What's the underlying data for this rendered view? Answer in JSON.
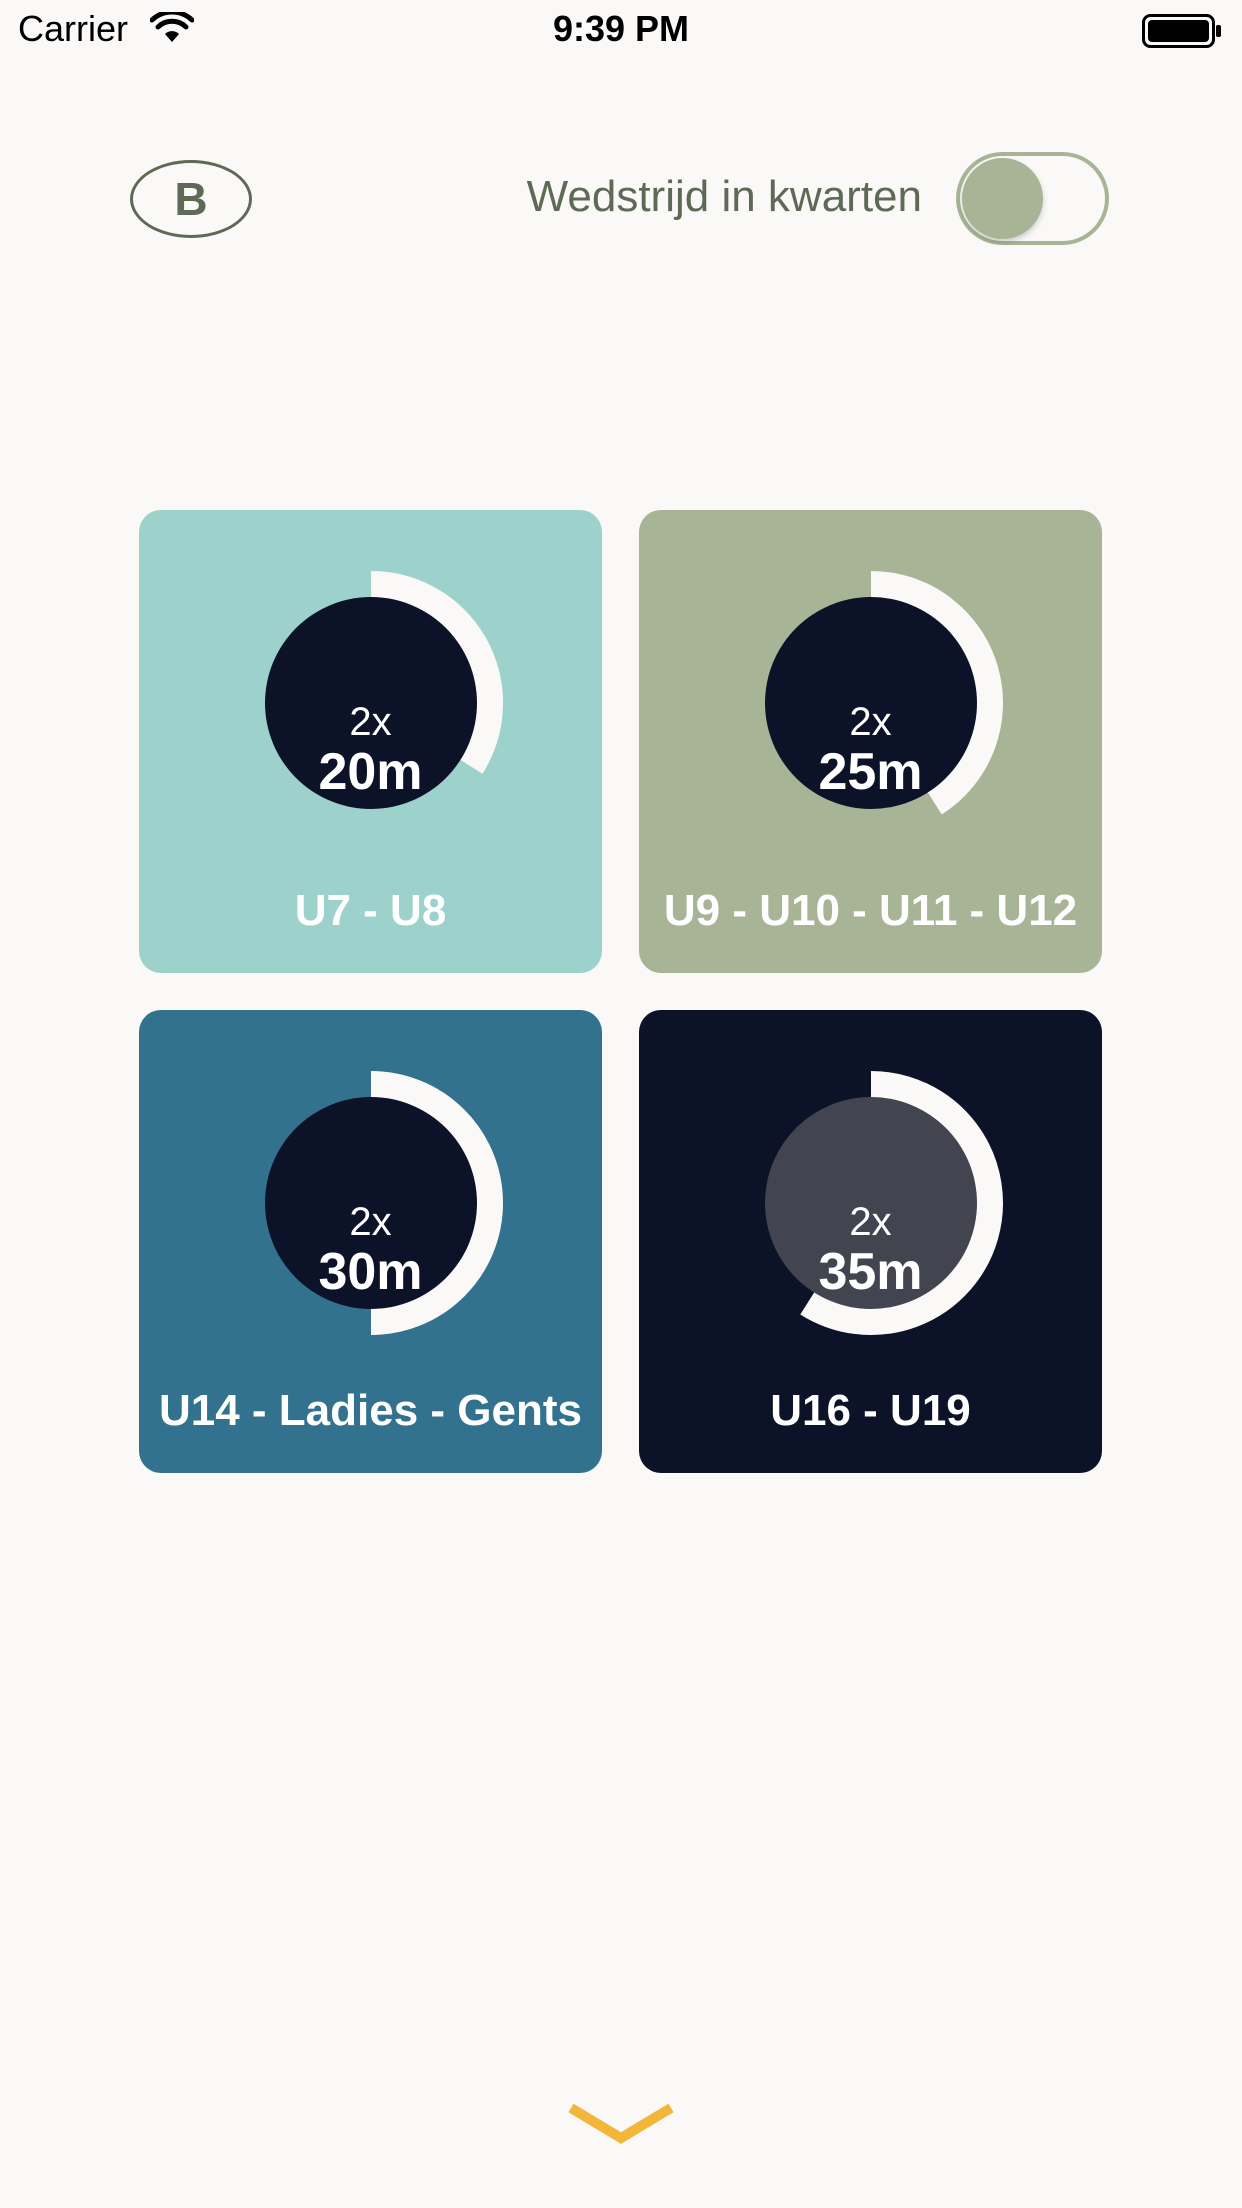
{
  "status_bar": {
    "carrier": "Carrier",
    "time": "9:39 PM"
  },
  "header": {
    "badge_letter": "B",
    "toggle_label": "Wedstrijd in kwarten",
    "toggle_on": true
  },
  "tiles": [
    {
      "count": "2x",
      "duration": "20m",
      "label": "U7 - U8",
      "background": "#9dd2cc",
      "progress": 0.34
    },
    {
      "count": "2x",
      "duration": "25m",
      "label": "U9 - U10 - U11 - U12",
      "background": "#a7b596",
      "progress": 0.41
    },
    {
      "count": "2x",
      "duration": "30m",
      "label": "U14 - Ladies - Gents",
      "background": "#32728e",
      "progress": 0.5
    },
    {
      "count": "2x",
      "duration": "35m",
      "label": "U16 - U19",
      "background": "#0c1228",
      "progress": 0.59,
      "inner_color": "#42444f"
    }
  ],
  "colors": {
    "accent_olive": "#5e6a55",
    "toggle_green": "#a7b596",
    "dark_navy": "#0c1228",
    "chevron_yellow": "#f2b63a"
  },
  "icons": {
    "wifi": "wifi-icon",
    "battery": "battery-icon",
    "chevron": "chevron-down-icon"
  }
}
